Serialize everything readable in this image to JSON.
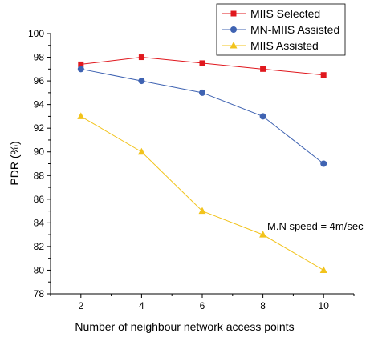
{
  "chart_data": {
    "type": "line",
    "title": "",
    "xlabel": "Number of neighbour network access points",
    "ylabel": "PDR (%)",
    "x": [
      2,
      4,
      6,
      8,
      10
    ],
    "x_ticks": [
      "2",
      "4",
      "6",
      "8",
      "10"
    ],
    "y_ticks": [
      "78",
      "80",
      "82",
      "84",
      "86",
      "88",
      "90",
      "92",
      "94",
      "96",
      "98",
      "100"
    ],
    "xlim": [
      1,
      11
    ],
    "ylim": [
      78,
      100
    ],
    "grid": false,
    "legend_position": "top-right",
    "series": [
      {
        "name": "MIIS Selected",
        "values": [
          97.4,
          98.0,
          97.5,
          97.0,
          96.5
        ],
        "color": "#e0181e",
        "marker": "square"
      },
      {
        "name": "MN-MIIS Assisted",
        "values": [
          97.0,
          96.0,
          95.0,
          93.0,
          89.0
        ],
        "color": "#3f63b2",
        "marker": "circle"
      },
      {
        "name": "MIIS Assisted",
        "values": [
          93.0,
          90.0,
          85.0,
          83.0,
          80.0
        ],
        "color": "#f2c31b",
        "marker": "triangle"
      }
    ],
    "annotation": "M.N speed = 4m/sec"
  }
}
